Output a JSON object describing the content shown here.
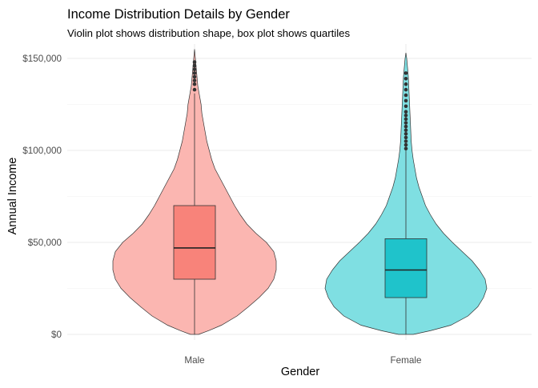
{
  "chart_data": {
    "type": "violin",
    "title": "Income Distribution Details by Gender",
    "subtitle": "Violin plot shows distribution shape, box plot shows quartiles",
    "xlabel": "Gender",
    "ylabel": "Annual Income",
    "categories": [
      "Male",
      "Female"
    ],
    "ylim": [
      0,
      150000
    ],
    "y_ticks": [
      0,
      50000,
      100000,
      150000
    ],
    "y_tick_labels": [
      "$0",
      "$50,000",
      "$100,000",
      "$150,000"
    ],
    "grid": true,
    "legend": "none",
    "series": [
      {
        "category": "Male",
        "violin_color": "#FBB6B1",
        "box_color": "#F8837A",
        "box": {
          "q1": 30000,
          "median": 47000,
          "q3": 70000,
          "whisker_low": 0,
          "whisker_high": 131000
        },
        "outliers": [
          133000,
          136000,
          138000,
          140000,
          142000,
          144000,
          146000,
          148000
        ],
        "density": [
          [
            0,
            0.05
          ],
          [
            2000,
            0.17
          ],
          [
            5000,
            0.33
          ],
          [
            10000,
            0.52
          ],
          [
            15000,
            0.66
          ],
          [
            20000,
            0.79
          ],
          [
            25000,
            0.9
          ],
          [
            30000,
            0.97
          ],
          [
            35000,
            1.0
          ],
          [
            40000,
            1.0
          ],
          [
            45000,
            0.97
          ],
          [
            50000,
            0.88
          ],
          [
            55000,
            0.75
          ],
          [
            60000,
            0.64
          ],
          [
            65000,
            0.56
          ],
          [
            70000,
            0.49
          ],
          [
            75000,
            0.43
          ],
          [
            80000,
            0.37
          ],
          [
            85000,
            0.31
          ],
          [
            90000,
            0.25
          ],
          [
            95000,
            0.21
          ],
          [
            100000,
            0.18
          ],
          [
            105000,
            0.15
          ],
          [
            110000,
            0.13
          ],
          [
            115000,
            0.11
          ],
          [
            120000,
            0.09
          ],
          [
            125000,
            0.08
          ],
          [
            130000,
            0.06
          ],
          [
            135000,
            0.04
          ],
          [
            140000,
            0.03
          ],
          [
            145000,
            0.02
          ],
          [
            150000,
            0.01
          ],
          [
            155000,
            0.0
          ]
        ]
      },
      {
        "category": "Female",
        "violin_color": "#7FDFE2",
        "box_color": "#1FC3CB",
        "box": {
          "q1": 20000,
          "median": 35000,
          "q3": 52000,
          "whisker_low": 0,
          "whisker_high": 100000
        },
        "outliers": [
          101000,
          103000,
          105000,
          107000,
          109000,
          111000,
          113000,
          115000,
          117000,
          119000,
          121000,
          124000,
          127000,
          130000,
          133000,
          136000,
          139000,
          142000
        ],
        "density": [
          [
            0,
            0.09
          ],
          [
            2000,
            0.3
          ],
          [
            5000,
            0.55
          ],
          [
            10000,
            0.76
          ],
          [
            15000,
            0.88
          ],
          [
            20000,
            0.95
          ],
          [
            25000,
            0.99
          ],
          [
            30000,
            0.97
          ],
          [
            35000,
            0.9
          ],
          [
            40000,
            0.81
          ],
          [
            45000,
            0.69
          ],
          [
            50000,
            0.57
          ],
          [
            55000,
            0.46
          ],
          [
            60000,
            0.37
          ],
          [
            65000,
            0.3
          ],
          [
            70000,
            0.24
          ],
          [
            75000,
            0.2
          ],
          [
            80000,
            0.16
          ],
          [
            85000,
            0.13
          ],
          [
            90000,
            0.11
          ],
          [
            95000,
            0.09
          ],
          [
            100000,
            0.075
          ],
          [
            105000,
            0.065
          ],
          [
            110000,
            0.06
          ],
          [
            115000,
            0.055
          ],
          [
            120000,
            0.05
          ],
          [
            125000,
            0.045
          ],
          [
            130000,
            0.04
          ],
          [
            135000,
            0.035
          ],
          [
            140000,
            0.03
          ],
          [
            145000,
            0.02
          ],
          [
            150000,
            0.01
          ],
          [
            153000,
            0.0
          ]
        ]
      }
    ]
  }
}
